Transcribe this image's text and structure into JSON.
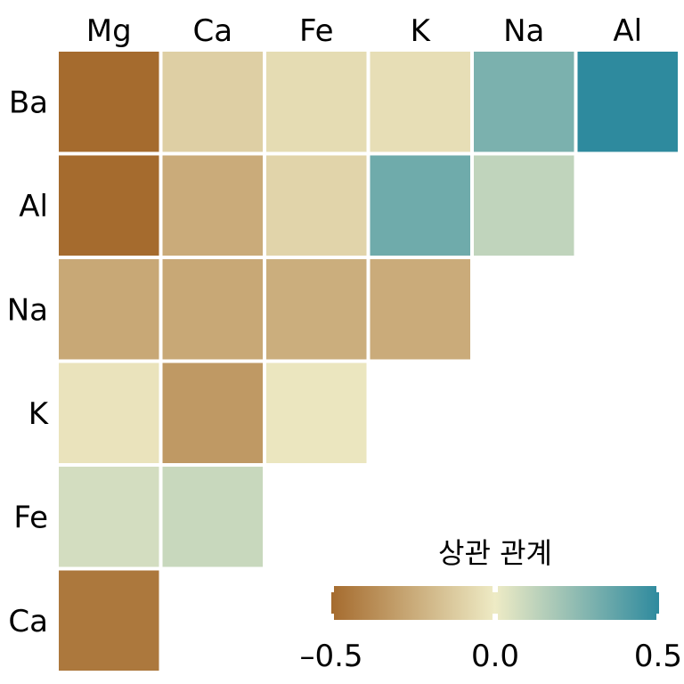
{
  "chart_data": {
    "type": "heatmap",
    "x_labels": [
      "Mg",
      "Ca",
      "Fe",
      "K",
      "Na",
      "Al"
    ],
    "y_labels": [
      "Ba",
      "Al",
      "Na",
      "K",
      "Fe",
      "Ca"
    ],
    "values": [
      [
        -0.5,
        -0.11,
        -0.06,
        -0.05,
        0.3,
        0.5
      ],
      [
        -0.5,
        -0.25,
        -0.09,
        0.33,
        0.12,
        null
      ],
      [
        -0.26,
        -0.26,
        -0.24,
        -0.25,
        null,
        null
      ],
      [
        -0.03,
        -0.32,
        -0.02,
        null,
        null,
        null
      ],
      [
        0.07,
        0.1,
        null,
        null,
        null,
        null
      ],
      [
        -0.45,
        null,
        null,
        null,
        null,
        null
      ]
    ],
    "colorbar": {
      "title": "상관 관계",
      "range": [
        -0.5,
        0.5
      ],
      "ticks": [
        -0.5,
        0.0,
        0.5
      ],
      "tick_labels": [
        "–0.5",
        "0.0",
        "0.5"
      ],
      "colors": [
        "#a56b2e",
        "#eeebc5",
        "#2e8a9e"
      ],
      "placement": "bottom-right"
    }
  }
}
